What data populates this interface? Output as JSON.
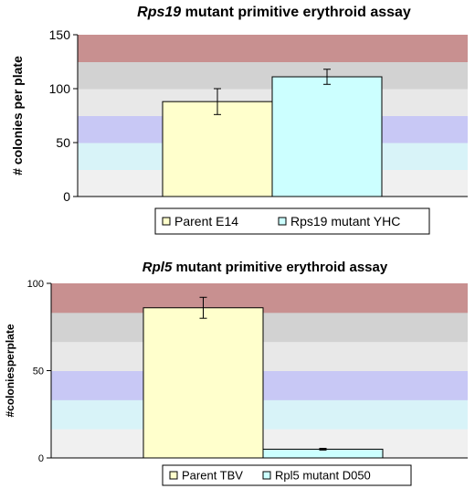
{
  "chart_data": [
    {
      "type": "bar",
      "title_italic": "Rps19",
      "title_rest": " mutant primitive erythroid assay",
      "ylabel": "# colonies per plate",
      "ylim": [
        0,
        150
      ],
      "yticks": [
        0,
        50,
        100,
        150
      ],
      "bands": [
        "#f0f0f0",
        "#d8f3f8",
        "#c8c8f5",
        "#e8e8e8",
        "#d2d2d2",
        "#c89090"
      ],
      "series": [
        {
          "name": "Parent E14",
          "value": 88,
          "error": 12,
          "color": "#ffffcc"
        },
        {
          "name": "Rps19 mutant YHC",
          "value": 111,
          "error": 7,
          "color": "#ccffff"
        }
      ],
      "legend_position": "bottom-center"
    },
    {
      "type": "bar",
      "title_italic": "Rpl5",
      "title_rest": " mutant primitive erythroid assay",
      "ylabel": "#coloniesperplate",
      "ylim": [
        0,
        100
      ],
      "yticks": [
        0,
        50,
        100
      ],
      "bands": [
        "#f0f0f0",
        "#d8f3f8",
        "#c8c8f5",
        "#e8e8e8",
        "#d2d2d2",
        "#c89090"
      ],
      "series": [
        {
          "name": "Parent TBV",
          "value": 86,
          "error": 6,
          "color": "#ffffcc"
        },
        {
          "name": "Rpl5 mutant D050",
          "value": 5,
          "error": 0.5,
          "color": "#ccffff"
        }
      ],
      "legend_position": "bottom-center"
    }
  ]
}
